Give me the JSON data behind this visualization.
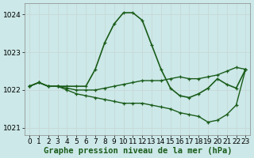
{
  "background_color": "#cce8e8",
  "grid_color": "#c8dada",
  "line_color": "#1a5c1a",
  "xlabel": "Graphe pression niveau de la mer (hPa)",
  "ylim": [
    1020.8,
    1024.3
  ],
  "xlim": [
    -0.5,
    23.5
  ],
  "yticks": [
    1021,
    1022,
    1023,
    1024
  ],
  "xticks": [
    0,
    1,
    2,
    3,
    4,
    5,
    6,
    7,
    8,
    9,
    10,
    11,
    12,
    13,
    14,
    15,
    16,
    17,
    18,
    19,
    20,
    21,
    22,
    23
  ],
  "series": [
    {
      "y": [
        1022.1,
        1022.2,
        1022.1,
        1022.1,
        1022.1,
        1022.1,
        1022.1,
        1022.55,
        1023.25,
        1023.75,
        1024.05,
        1024.05,
        1023.85,
        1023.2,
        1022.55,
        1022.05,
        1021.85,
        1021.8,
        1021.9,
        1022.05,
        1022.3,
        1022.15,
        1022.05,
        1022.55
      ],
      "lw": 1.2
    },
    {
      "y": [
        1022.1,
        1022.2,
        1022.1,
        1022.1,
        1022.05,
        1022.0,
        1022.0,
        1022.0,
        1022.05,
        1022.1,
        1022.15,
        1022.2,
        1022.25,
        1022.25,
        1022.25,
        1022.3,
        1022.35,
        1022.3,
        1022.3,
        1022.35,
        1022.4,
        1022.5,
        1022.6,
        1022.55
      ],
      "lw": 1.0
    },
    {
      "y": [
        1022.1,
        1022.2,
        1022.1,
        1022.1,
        1022.0,
        1021.9,
        1021.85,
        1021.8,
        1021.75,
        1021.7,
        1021.65,
        1021.65,
        1021.65,
        1021.6,
        1021.55,
        1021.5,
        1021.4,
        1021.35,
        1021.3,
        1021.15,
        1021.2,
        1021.35,
        1021.6,
        1022.55
      ],
      "lw": 1.0
    }
  ],
  "tick_fontsize": 6.5,
  "xlabel_fontsize": 7.5
}
